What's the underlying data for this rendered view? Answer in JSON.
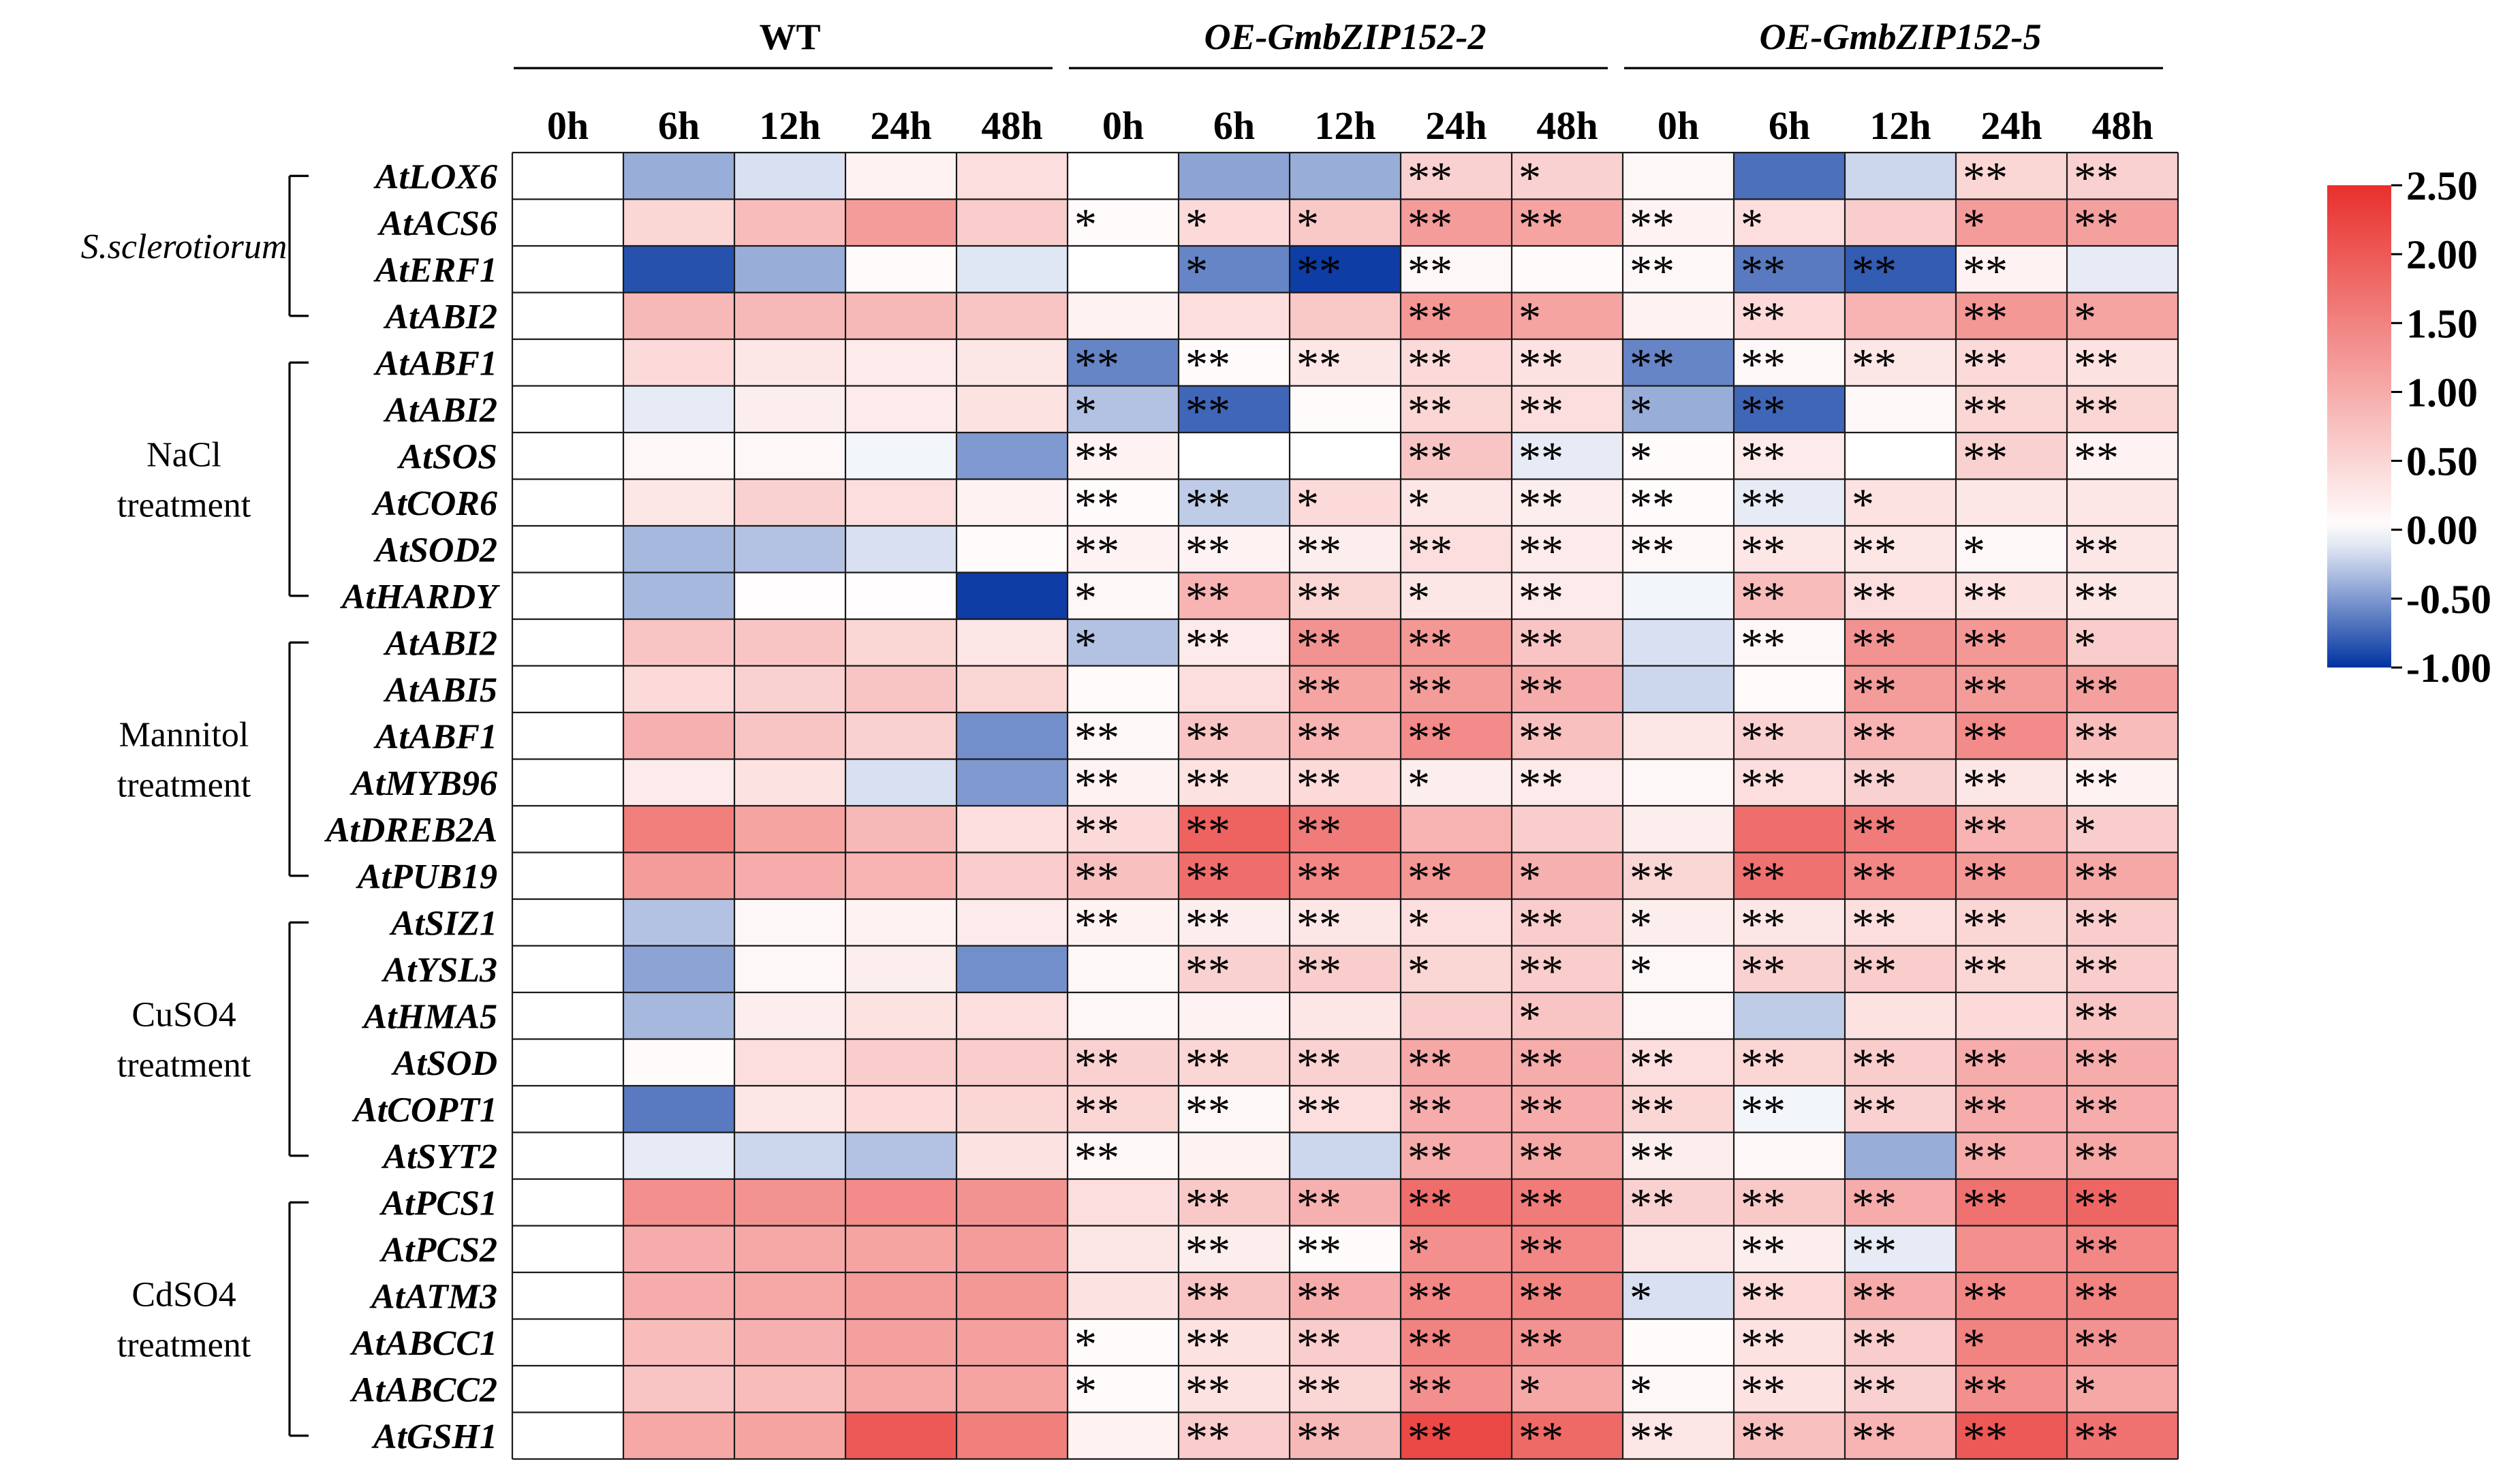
{
  "chart_data": {
    "type": "heatmap",
    "condition_titles": [
      "WT",
      "OE-GmbZIP152-2",
      "OE-GmbZIP152-5"
    ],
    "timepoints": [
      "0h",
      "6h",
      "12h",
      "24h",
      "48h"
    ],
    "color_scale": {
      "min": -1.0,
      "max": 2.5,
      "ticks": [
        "2.50",
        "2.00",
        "1.50",
        "1.00",
        "0.50",
        "0.00",
        "-0.50",
        "-1.00"
      ],
      "low_color": "#0033a0",
      "mid_color": "#ffffff",
      "high_color": "#e8302c"
    },
    "groups": [
      {
        "label_lines": [
          "S.sclerotiorum"
        ],
        "italic": true,
        "rows": [
          0,
          3
        ]
      },
      {
        "label_lines": [
          "NaCl",
          "treatment"
        ],
        "italic": false,
        "rows": [
          4,
          9
        ]
      },
      {
        "label_lines": [
          "Mannitol",
          "treatment"
        ],
        "italic": false,
        "rows": [
          10,
          15
        ]
      },
      {
        "label_lines": [
          "CuSO4",
          "treatment"
        ],
        "italic": false,
        "rows": [
          16,
          21
        ]
      },
      {
        "label_lines": [
          "CdSO4",
          "treatment"
        ],
        "italic": false,
        "rows": [
          22,
          27
        ]
      }
    ],
    "rows": [
      {
        "gene": "AtLOX6",
        "values": [
          0,
          -0.4,
          -0.15,
          0.15,
          0.4,
          0,
          -0.45,
          -0.4,
          0.55,
          0.55,
          0.1,
          -0.7,
          -0.2,
          0.5,
          0.55
        ],
        "sig": [
          "",
          "",
          "",
          "",
          "",
          "",
          "",
          "",
          "**",
          "*",
          "",
          "",
          "",
          "**",
          "**"
        ]
      },
      {
        "gene": "AtACS6",
        "values": [
          0,
          0.5,
          0.8,
          1.2,
          0.6,
          0.05,
          0.45,
          0.65,
          1.2,
          1.1,
          0.15,
          0.4,
          0.6,
          1.2,
          1.15
        ],
        "sig": [
          "",
          "",
          "",
          "",
          "",
          "*",
          "*",
          "*",
          "**",
          "**",
          "**",
          "*",
          "",
          "*",
          "**"
        ]
      },
      {
        "gene": "AtERF1",
        "values": [
          0,
          -0.85,
          -0.4,
          0.05,
          -0.12,
          0,
          -0.6,
          -0.95,
          0.1,
          0.05,
          0.1,
          -0.65,
          -0.8,
          0.15,
          -0.1
        ],
        "sig": [
          "",
          "",
          "",
          "",
          "",
          "",
          "*",
          "**",
          "**",
          "",
          "**",
          "**",
          "**",
          "**",
          ""
        ]
      },
      {
        "gene": "AtABI2",
        "values": [
          0,
          0.85,
          0.85,
          0.85,
          0.7,
          0.15,
          0.4,
          0.65,
          1.25,
          1.1,
          0.15,
          0.45,
          0.9,
          1.25,
          1.1
        ],
        "sig": [
          "",
          "",
          "",
          "",
          "",
          "",
          "",
          "",
          "**",
          "*",
          "",
          "**",
          "",
          "**",
          "*"
        ]
      },
      {
        "gene": "AtABF1",
        "values": [
          0,
          0.45,
          0.3,
          0.25,
          0.3,
          -0.6,
          0.05,
          0.3,
          0.45,
          0.35,
          -0.6,
          0.1,
          0.3,
          0.45,
          0.35
        ],
        "sig": [
          "",
          "",
          "",
          "",
          "",
          "**",
          "**",
          "**",
          "**",
          "**",
          "**",
          "**",
          "**",
          "**",
          "**"
        ]
      },
      {
        "gene": "AtABI2",
        "values": [
          0,
          -0.1,
          0.2,
          0.25,
          0.35,
          -0.3,
          -0.75,
          0.05,
          0.5,
          0.4,
          -0.4,
          -0.75,
          0.1,
          0.5,
          0.5
        ],
        "sig": [
          "",
          "",
          "",
          "",
          "",
          "*",
          "**",
          "",
          "**",
          "**",
          "*",
          "**",
          "",
          "**",
          "**"
        ]
      },
      {
        "gene": "AtSOS",
        "values": [
          0,
          0.1,
          0.1,
          -0.05,
          -0.5,
          0.15,
          0,
          0,
          0.7,
          -0.1,
          0.05,
          0.25,
          0,
          0.55,
          0.15
        ],
        "sig": [
          "",
          "",
          "",
          "",
          "",
          "**",
          "",
          "",
          "**",
          "**",
          "*",
          "**",
          "",
          "**",
          "**"
        ]
      },
      {
        "gene": "AtCOR6",
        "values": [
          0,
          0.3,
          0.55,
          0.4,
          0.15,
          0.05,
          -0.25,
          0.45,
          0.3,
          0.2,
          0.05,
          -0.1,
          0.35,
          0.3,
          0.3
        ],
        "sig": [
          "",
          "",
          "",
          "",
          "",
          "**",
          "**",
          "*",
          "*",
          "**",
          "**",
          "**",
          "*",
          "",
          ""
        ]
      },
      {
        "gene": "AtSOD2",
        "values": [
          0,
          -0.35,
          -0.3,
          -0.15,
          0.05,
          0.15,
          0.15,
          0.2,
          0.4,
          0.25,
          0.1,
          0.3,
          0.3,
          0.1,
          0.3
        ],
        "sig": [
          "",
          "",
          "",
          "",
          "",
          "**",
          "**",
          "**",
          "**",
          "**",
          "**",
          "**",
          "**",
          "*",
          "**"
        ]
      },
      {
        "gene": "AtHARDY",
        "values": [
          0,
          -0.35,
          0.02,
          0.02,
          -0.95,
          0.1,
          0.9,
          0.5,
          0.3,
          0.25,
          -0.05,
          0.8,
          0.4,
          0.35,
          0.3
        ],
        "sig": [
          "",
          "",
          "",
          "",
          "",
          "*",
          "**",
          "**",
          "*",
          "**",
          "",
          "**",
          "**",
          "**",
          "**"
        ]
      },
      {
        "gene": "AtABI2",
        "values": [
          0,
          0.7,
          0.7,
          0.5,
          0.3,
          -0.3,
          0.25,
          1.3,
          1.25,
          0.7,
          -0.15,
          0.1,
          1.3,
          1.25,
          0.6
        ],
        "sig": [
          "",
          "",
          "",
          "",
          "",
          "*",
          "**",
          "**",
          "**",
          "**",
          "",
          "**",
          "**",
          "**",
          "*"
        ]
      },
      {
        "gene": "AtABI5",
        "values": [
          0,
          0.45,
          0.55,
          0.7,
          0.5,
          0.05,
          0.4,
          1.1,
          1.2,
          1.0,
          -0.2,
          0.05,
          1.2,
          1.2,
          1.15
        ],
        "sig": [
          "",
          "",
          "",
          "",
          "",
          "",
          "",
          "**",
          "**",
          "**",
          "",
          "",
          "**",
          "**",
          "**"
        ]
      },
      {
        "gene": "AtABF1",
        "values": [
          0,
          0.95,
          0.7,
          0.55,
          -0.55,
          0.1,
          0.7,
          0.9,
          1.4,
          0.75,
          0.3,
          0.55,
          0.9,
          1.4,
          0.8
        ],
        "sig": [
          "",
          "",
          "",
          "",
          "",
          "**",
          "**",
          "**",
          "**",
          "**",
          "",
          "**",
          "**",
          "**",
          "**"
        ]
      },
      {
        "gene": "AtMYB96",
        "values": [
          0,
          0.25,
          0.35,
          -0.15,
          -0.5,
          0.15,
          0.35,
          0.45,
          0.2,
          0.25,
          0.1,
          0.4,
          0.55,
          0.3,
          0.15
        ],
        "sig": [
          "",
          "",
          "",
          "",
          "",
          "**",
          "**",
          "**",
          "*",
          "**",
          "",
          "**",
          "**",
          "**",
          "**"
        ]
      },
      {
        "gene": "AtDREB2A",
        "values": [
          0,
          1.55,
          1.1,
          0.85,
          0.4,
          0.45,
          1.9,
          1.6,
          0.9,
          0.6,
          0.2,
          1.75,
          1.6,
          0.9,
          0.6
        ],
        "sig": [
          "",
          "",
          "",
          "",
          "",
          "**",
          "**",
          "**",
          "",
          "",
          "",
          "",
          "**",
          "**",
          "*"
        ]
      },
      {
        "gene": "AtPUB19",
        "values": [
          0,
          1.2,
          1.0,
          0.9,
          0.6,
          0.75,
          1.75,
          1.45,
          1.25,
          0.95,
          0.5,
          1.7,
          1.45,
          1.25,
          1.05
        ],
        "sig": [
          "",
          "",
          "",
          "",
          "",
          "**",
          "**",
          "**",
          "**",
          "*",
          "**",
          "**",
          "**",
          "**",
          "**"
        ]
      },
      {
        "gene": "AtSIZ1",
        "values": [
          0,
          -0.3,
          0.1,
          0.15,
          0.25,
          0.15,
          0.2,
          0.3,
          0.4,
          0.6,
          0.2,
          0.3,
          0.4,
          0.5,
          0.6
        ],
        "sig": [
          "",
          "",
          "",
          "",
          "",
          "**",
          "**",
          "**",
          "*",
          "**",
          "*",
          "**",
          "**",
          "**",
          "**"
        ]
      },
      {
        "gene": "AtYSL3",
        "values": [
          0,
          -0.45,
          0.1,
          0.2,
          -0.55,
          0.1,
          0.55,
          0.6,
          0.5,
          0.6,
          0.1,
          0.55,
          0.6,
          0.5,
          0.6
        ],
        "sig": [
          "",
          "",
          "",
          "",
          "",
          "",
          "**",
          "**",
          "*",
          "**",
          "*",
          "**",
          "**",
          "**",
          "**"
        ]
      },
      {
        "gene": "AtHMA5",
        "values": [
          0,
          -0.35,
          0.2,
          0.35,
          0.4,
          0.1,
          0.15,
          0.3,
          0.6,
          0.7,
          0.1,
          -0.25,
          0.35,
          0.45,
          0.7
        ],
        "sig": [
          "",
          "",
          "",
          "",
          "",
          "",
          "",
          "",
          "",
          "*",
          "",
          "",
          "",
          "",
          "**"
        ]
      },
      {
        "gene": "AtSOD",
        "values": [
          0,
          0.05,
          0.4,
          0.6,
          0.6,
          0.55,
          0.5,
          0.55,
          1.05,
          1.0,
          0.4,
          0.5,
          0.6,
          1.0,
          1.0
        ],
        "sig": [
          "",
          "",
          "",
          "",
          "",
          "**",
          "**",
          "**",
          "**",
          "**",
          "**",
          "**",
          "**",
          "**",
          "**"
        ]
      },
      {
        "gene": "AtCOPT1",
        "values": [
          0,
          -0.65,
          0.3,
          0.45,
          0.5,
          0.5,
          0.1,
          0.4,
          1.0,
          1.0,
          0.5,
          -0.05,
          0.55,
          1.0,
          1.0
        ],
        "sig": [
          "",
          "",
          "",
          "",
          "",
          "**",
          "**",
          "**",
          "**",
          "**",
          "**",
          "**",
          "**",
          "**",
          "**"
        ]
      },
      {
        "gene": "AtSYT2",
        "values": [
          0,
          -0.1,
          -0.2,
          -0.3,
          0.35,
          0.1,
          0.15,
          -0.2,
          1.0,
          1.05,
          0.2,
          0.1,
          -0.4,
          1.0,
          1.05
        ],
        "sig": [
          "",
          "",
          "",
          "",
          "",
          "**",
          "",
          "",
          "**",
          "**",
          "**",
          "",
          "",
          "**",
          "**"
        ]
      },
      {
        "gene": "AtPCS1",
        "values": [
          0,
          1.35,
          1.3,
          1.4,
          1.3,
          0.4,
          0.65,
          0.95,
          1.75,
          1.6,
          0.55,
          0.65,
          1.0,
          1.7,
          1.85
        ],
        "sig": [
          "",
          "",
          "",
          "",
          "",
          "",
          "**",
          "**",
          "**",
          "**",
          "**",
          "**",
          "**",
          "**",
          "**"
        ]
      },
      {
        "gene": "AtPCS2",
        "values": [
          0,
          1.0,
          1.05,
          1.1,
          1.2,
          0.3,
          0.2,
          0.05,
          1.35,
          1.45,
          0.3,
          0.2,
          -0.1,
          1.35,
          1.45
        ],
        "sig": [
          "",
          "",
          "",
          "",
          "",
          "",
          "**",
          "**",
          "*",
          "**",
          "",
          "**",
          "**",
          "",
          "**"
        ]
      },
      {
        "gene": "AtATM3",
        "values": [
          0,
          1.0,
          1.05,
          1.2,
          1.25,
          0.35,
          0.7,
          1.0,
          1.45,
          1.5,
          -0.15,
          0.45,
          1.0,
          1.45,
          1.5
        ],
        "sig": [
          "",
          "",
          "",
          "",
          "",
          "",
          "**",
          "**",
          "**",
          "**",
          "*",
          "**",
          "**",
          "**",
          "**"
        ]
      },
      {
        "gene": "AtABCC1",
        "values": [
          0,
          0.8,
          0.95,
          1.15,
          1.15,
          0.05,
          0.35,
          0.6,
          1.5,
          1.3,
          0.05,
          0.35,
          0.6,
          1.5,
          1.3
        ],
        "sig": [
          "",
          "",
          "",
          "",
          "",
          "*",
          "**",
          "**",
          "**",
          "**",
          "",
          "**",
          "**",
          "*",
          "**"
        ]
      },
      {
        "gene": "AtABCC2",
        "values": [
          0,
          0.7,
          0.8,
          1.05,
          1.1,
          0.05,
          0.35,
          0.5,
          1.35,
          1.05,
          0.1,
          0.35,
          0.55,
          1.35,
          1.05
        ],
        "sig": [
          "",
          "",
          "",
          "",
          "",
          "*",
          "**",
          "**",
          "**",
          "*",
          "*",
          "**",
          "**",
          "**",
          "*"
        ]
      },
      {
        "gene": "AtGSH1",
        "values": [
          0,
          1.05,
          1.1,
          2.0,
          1.55,
          0.15,
          0.6,
          0.85,
          2.2,
          1.8,
          0.3,
          0.75,
          0.9,
          2.0,
          1.7
        ],
        "sig": [
          "",
          "",
          "",
          "",
          "",
          "",
          "**",
          "**",
          "**",
          "**",
          "**",
          "**",
          "**",
          "**",
          "**"
        ]
      }
    ]
  }
}
